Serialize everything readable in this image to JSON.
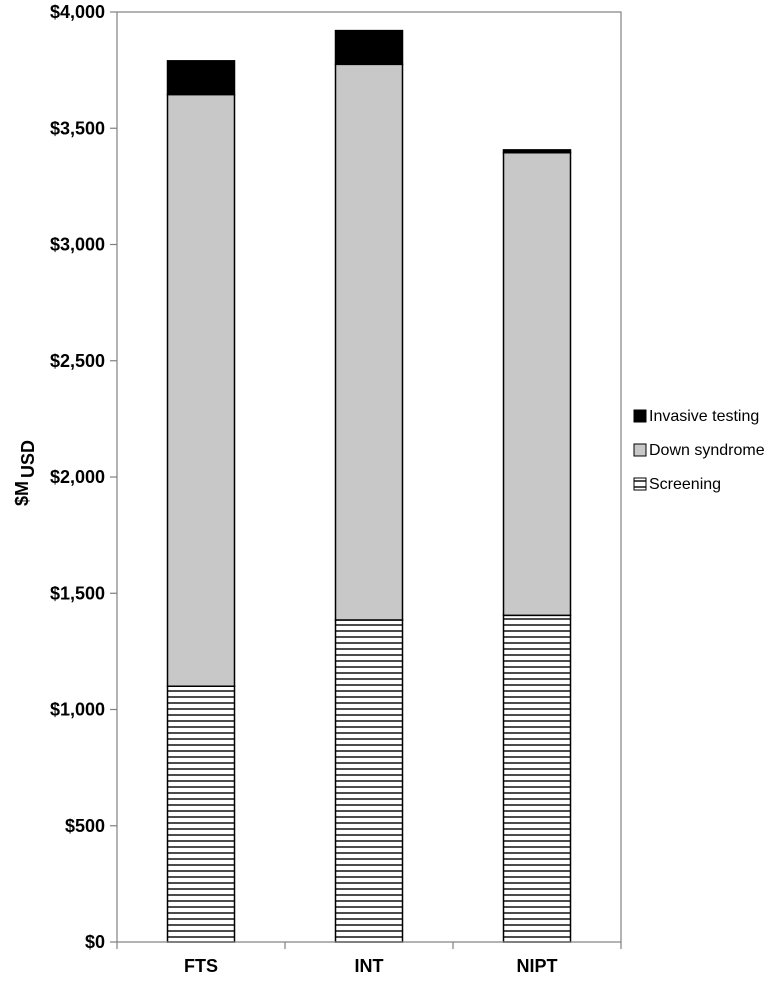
{
  "chart_data": {
    "type": "bar",
    "stacked": true,
    "title": "",
    "xlabel": "",
    "ylabel": "$M",
    "ylabel_subscript": "USD",
    "ylim": [
      0,
      4000
    ],
    "y_ticks": [
      0,
      500,
      1000,
      1500,
      2000,
      2500,
      3000,
      3500,
      4000
    ],
    "y_tick_labels": [
      "$0",
      "$500",
      "$1,000",
      "$1,500",
      "$2,000",
      "$2,500",
      "$3,000",
      "$3,500",
      "$4,000"
    ],
    "categories": [
      "FTS",
      "INT",
      "NIPT"
    ],
    "series": [
      {
        "name": "Screening",
        "values": [
          1100,
          1385,
          1405
        ],
        "fill": "horizontal-stripes",
        "color": "#000000"
      },
      {
        "name": "Down syndrome",
        "values": [
          2545,
          2390,
          1990
        ],
        "fill": "solid",
        "color": "#c8c8c8"
      },
      {
        "name": "Invasive testing",
        "values": [
          145,
          145,
          12
        ],
        "fill": "solid",
        "color": "#000000"
      }
    ],
    "legend": {
      "placement": "right",
      "order": [
        "Invasive testing",
        "Down syndrome",
        "Screening"
      ]
    },
    "grid": false
  }
}
